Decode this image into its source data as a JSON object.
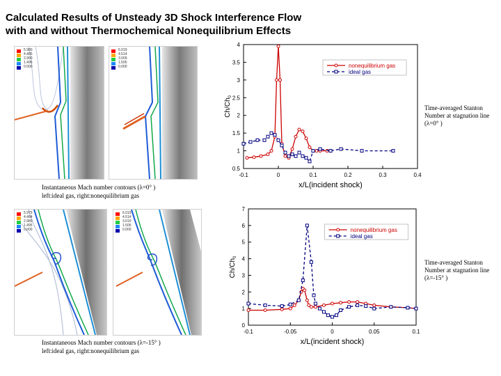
{
  "title": {
    "line1": "Calculated Results of Unsteady 3D Shock Interference Flow",
    "line2": "with and without Thermochemical Nonequilibrium Effects"
  },
  "figures": {
    "top": {
      "left_legend": [
        "5.980",
        "4.485",
        "2.990",
        "1.495",
        "0.000"
      ],
      "right_legend": [
        "6.019",
        "4.514",
        "3.009",
        "1.505",
        "0.000"
      ],
      "caption_line1": "Instantaneous Mach number contours (λ=0° )",
      "caption_line2": "left:ideal gas, right:nonequilibrium gas"
    },
    "bottom": {
      "left_legend": [
        "5.979",
        "4.484",
        "2.989",
        "1.495",
        "0.000"
      ],
      "right_legend": [
        "6.019",
        "4.514",
        "3.010",
        "1.505",
        "0.000"
      ],
      "caption_line1": "Instantaneous Mach number contours (λ=-15° )",
      "caption_line2": "left:ideal gas, right:nonequilibrium gas"
    }
  },
  "side_notes": {
    "top": [
      "Time-averaged Stanton",
      "Number at stagnation line",
      "(λ=0° )"
    ],
    "bottom": [
      "Time-averaged Stanton",
      "Number at stagnation line",
      "(λ=-15° )"
    ]
  },
  "colors": {
    "noneq": "#cc0000",
    "ideal": "#000080"
  },
  "chart_data": [
    {
      "type": "line",
      "xlabel": "x/L(incident shock)",
      "ylabel": "Ch/Ch",
      "ylabel_sub": "0",
      "xlim": [
        -0.1,
        0.4
      ],
      "ylim": [
        0.5,
        4
      ],
      "xticks": [
        "-0.1",
        "0",
        "0.1",
        "0.2",
        "0.3",
        "0.4"
      ],
      "xtick_values": [
        -0.1,
        0,
        0.1,
        0.2,
        0.3,
        0.4
      ],
      "yticks": [
        "0.5",
        "1",
        "1.5",
        "2",
        "2.5",
        "3",
        "3.5",
        "4"
      ],
      "ytick_values": [
        0.5,
        1,
        1.5,
        2,
        2.5,
        3,
        3.5,
        4
      ],
      "legend_position": "top-right",
      "series": [
        {
          "name": "nonequilibrium gas",
          "x": [
            -0.09,
            -0.07,
            -0.05,
            -0.03,
            -0.02,
            -0.01,
            -0.005,
            0,
            0.005,
            0.01,
            0.02,
            0.03,
            0.04,
            0.05,
            0.06,
            0.07,
            0.08,
            0.09,
            0.1,
            0.11,
            0.12,
            0.14
          ],
          "y": [
            0.8,
            0.82,
            0.85,
            0.9,
            1.0,
            1.4,
            3.0,
            3.95,
            3.0,
            1.2,
            0.85,
            0.8,
            1.05,
            1.4,
            1.6,
            1.55,
            1.35,
            1.1,
            1.0,
            1.0,
            1.0,
            1.0
          ]
        },
        {
          "name": "ideal gas",
          "x": [
            -0.1,
            -0.08,
            -0.06,
            -0.04,
            -0.03,
            -0.02,
            -0.01,
            0,
            0.01,
            0.02,
            0.03,
            0.04,
            0.05,
            0.06,
            0.07,
            0.08,
            0.09,
            0.1,
            0.12,
            0.15,
            0.18,
            0.24,
            0.33
          ],
          "y": [
            1.2,
            1.25,
            1.3,
            1.3,
            1.4,
            1.5,
            1.45,
            1.3,
            1.15,
            0.95,
            0.85,
            0.9,
            0.85,
            0.95,
            0.85,
            0.8,
            0.7,
            1.0,
            1.05,
            1.0,
            1.05,
            1.0,
            1.0
          ]
        }
      ]
    },
    {
      "type": "line",
      "xlabel": "x/L(incident shock)",
      "ylabel": "Ch/Ch",
      "ylabel_sub": "0",
      "xlim": [
        -0.1,
        0.1
      ],
      "ylim": [
        0,
        7
      ],
      "xticks": [
        "-0.1",
        "-0.05",
        "0",
        "0.05",
        "0.1"
      ],
      "xtick_values": [
        -0.1,
        -0.05,
        0,
        0.05,
        0.1
      ],
      "yticks": [
        "0",
        "1",
        "2",
        "3",
        "4",
        "5",
        "6",
        "7"
      ],
      "ytick_values": [
        0,
        1,
        2,
        3,
        4,
        5,
        6,
        7
      ],
      "legend_position": "top-right",
      "series": [
        {
          "name": "nonequilibrium gas",
          "x": [
            -0.1,
            -0.08,
            -0.06,
            -0.05,
            -0.045,
            -0.04,
            -0.037,
            -0.035,
            -0.033,
            -0.03,
            -0.028,
            -0.025,
            -0.02,
            -0.01,
            0,
            0.01,
            0.02,
            0.03,
            0.04,
            0.05,
            0.07,
            0.09,
            0.1
          ],
          "y": [
            0.9,
            0.9,
            0.95,
            1.0,
            1.2,
            1.5,
            2.0,
            2.2,
            2.1,
            1.5,
            1.2,
            1.1,
            1.1,
            1.2,
            1.3,
            1.35,
            1.4,
            1.4,
            1.3,
            1.2,
            1.1,
            1.05,
            1.0
          ]
        },
        {
          "name": "ideal gas",
          "x": [
            -0.1,
            -0.08,
            -0.06,
            -0.05,
            -0.04,
            -0.035,
            -0.03,
            -0.025,
            -0.022,
            -0.02,
            -0.015,
            -0.01,
            -0.005,
            0,
            0.005,
            0.01,
            0.02,
            0.03,
            0.04,
            0.05,
            0.07,
            0.09,
            0.1
          ],
          "y": [
            1.3,
            1.2,
            1.15,
            1.25,
            1.5,
            2.7,
            6.0,
            3.8,
            1.8,
            1.3,
            1.0,
            0.8,
            0.6,
            0.5,
            0.6,
            0.9,
            1.1,
            1.2,
            1.15,
            1.0,
            1.1,
            1.05,
            1.0
          ]
        }
      ]
    }
  ]
}
